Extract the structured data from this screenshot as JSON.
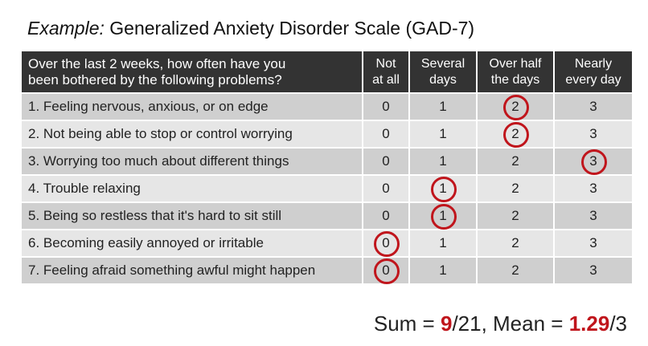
{
  "title": {
    "prefix": "Example:",
    "text": "Generalized Anxiety Disorder Scale (GAD-7)"
  },
  "table": {
    "question_header_line1": "Over the last 2 weeks, how often have you",
    "question_header_line2": "been bothered by the following problems?",
    "columns": [
      {
        "line1": "Not",
        "line2": "at all"
      },
      {
        "line1": "Several",
        "line2": "days"
      },
      {
        "line1": "Over half",
        "line2": "the days"
      },
      {
        "line1": "Nearly",
        "line2": "every day"
      }
    ],
    "rows": [
      {
        "question": "1. Feeling nervous, anxious, or on edge",
        "values": [
          "0",
          "1",
          "2",
          "3"
        ],
        "selected_index": 2
      },
      {
        "question": "2. Not being able to stop or control worrying",
        "values": [
          "0",
          "1",
          "2",
          "3"
        ],
        "selected_index": 2
      },
      {
        "question": "3. Worrying too much about different things",
        "values": [
          "0",
          "1",
          "2",
          "3"
        ],
        "selected_index": 3
      },
      {
        "question": "4. Trouble relaxing",
        "values": [
          "0",
          "1",
          "2",
          "3"
        ],
        "selected_index": 1
      },
      {
        "question": "5. Being so restless that it's hard to sit still",
        "values": [
          "0",
          "1",
          "2",
          "3"
        ],
        "selected_index": 1
      },
      {
        "question": "6. Becoming easily annoyed or irritable",
        "values": [
          "0",
          "1",
          "2",
          "3"
        ],
        "selected_index": 0
      },
      {
        "question": "7. Feeling afraid something awful might happen",
        "values": [
          "0",
          "1",
          "2",
          "3"
        ],
        "selected_index": 0
      }
    ]
  },
  "summary": {
    "sum_label": "Sum = ",
    "sum_value": "9",
    "sum_total": "/21, Mean = ",
    "mean_value": "1.29",
    "mean_total": "/3"
  },
  "colors": {
    "highlight": "#c0151c",
    "header_bg": "#333333",
    "row_dark": "#cfcfcf",
    "row_light": "#e6e6e6"
  }
}
